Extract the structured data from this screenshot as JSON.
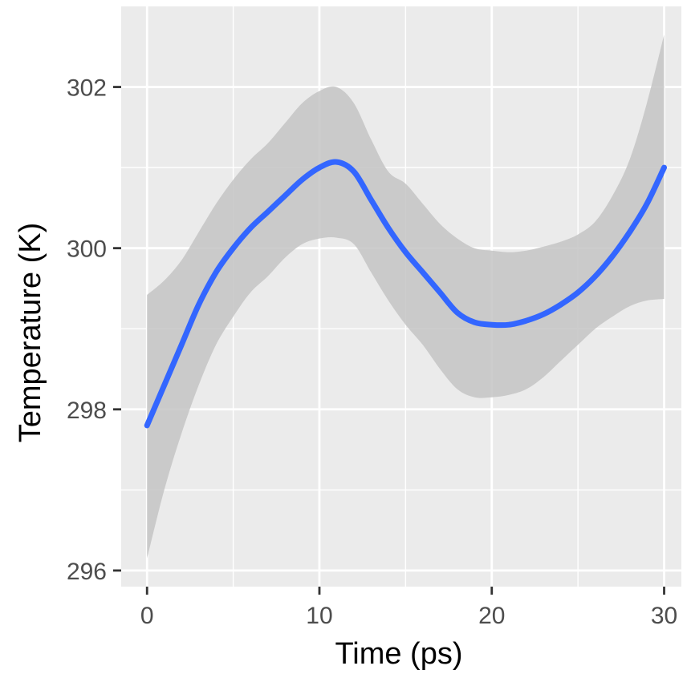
{
  "chart_data": {
    "type": "line",
    "title": "",
    "xlabel": "Time (ps)",
    "ylabel": "Temperature (K)",
    "xlim": [
      -1.5,
      31.0
    ],
    "ylim": [
      295.8,
      303.0
    ],
    "x_ticks": [
      0,
      10,
      20,
      30
    ],
    "x_tick_labels": [
      "0",
      "10",
      "20",
      "30"
    ],
    "y_ticks": [
      296,
      298,
      300,
      302
    ],
    "y_tick_labels": [
      "296",
      "298",
      "300",
      "302"
    ],
    "grid": true,
    "legend": "none",
    "colors": {
      "panel": "#ebebeb",
      "grid": "#ffffff",
      "line": "#3366ff",
      "ribbon": "#c4c4c4",
      "tick_label": "#4d4d4d",
      "axis_title": "#000000"
    },
    "series": [
      {
        "x": [
          0,
          1,
          2,
          3,
          4,
          5,
          6,
          7,
          8,
          9,
          10,
          11,
          12,
          13,
          14,
          15,
          16,
          17,
          18,
          19,
          20,
          21,
          22,
          23,
          24,
          25,
          26,
          27,
          28,
          29,
          30
        ],
        "y": [
          297.8,
          298.3,
          298.8,
          299.3,
          299.7,
          300.0,
          300.25,
          300.45,
          300.65,
          300.85,
          301.0,
          301.07,
          300.95,
          300.6,
          300.25,
          299.95,
          299.7,
          299.45,
          299.2,
          299.08,
          299.05,
          299.05,
          299.1,
          299.18,
          299.3,
          299.45,
          299.65,
          299.9,
          300.2,
          300.55,
          301.0
        ],
        "ci_lower": [
          296.15,
          297.0,
          297.7,
          298.3,
          298.8,
          299.15,
          299.45,
          299.65,
          299.88,
          300.05,
          300.12,
          300.13,
          300.05,
          299.7,
          299.35,
          299.05,
          298.8,
          298.5,
          298.25,
          298.15,
          298.15,
          298.18,
          298.25,
          298.4,
          298.6,
          298.8,
          299.0,
          299.15,
          299.28,
          299.35,
          299.37
        ],
        "ci_upper": [
          299.42,
          299.6,
          299.85,
          300.2,
          300.55,
          300.85,
          301.1,
          301.3,
          301.55,
          301.8,
          301.95,
          302.0,
          301.8,
          301.35,
          300.95,
          300.8,
          300.55,
          300.3,
          300.12,
          300.0,
          299.97,
          299.95,
          299.97,
          300.02,
          300.08,
          300.17,
          300.33,
          300.65,
          301.1,
          301.8,
          302.65
        ]
      }
    ]
  }
}
